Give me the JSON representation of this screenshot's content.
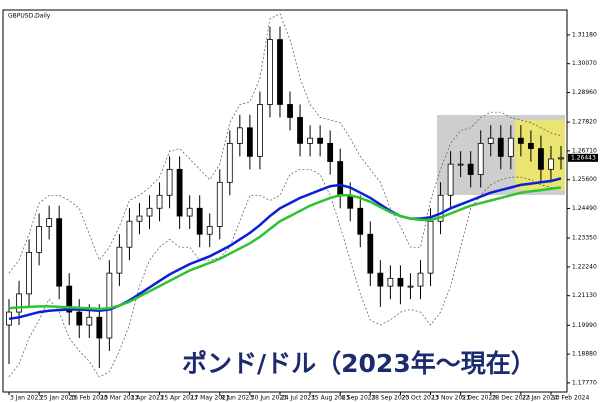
{
  "chart_data": {
    "type": "candlestick",
    "title": "GBPUSD,Daily",
    "annotation": "ポンド/ドル（2023年～現在）",
    "categories": [
      "3 Jan 2023",
      null,
      null,
      "25 Jan 2023",
      null,
      null,
      "16 Feb 2023",
      null,
      null,
      "10 Mar 2023",
      null,
      null,
      "3 Apr 2023",
      null,
      null,
      "25 Apr 2023",
      null,
      null,
      "17 May 2023",
      null,
      null,
      "8 Jun 2023",
      null,
      null,
      "30 Jun 2023",
      null,
      null,
      "24 Jul 2023",
      null,
      null,
      "15 Aug 2023",
      null,
      null,
      "6 Sep 2023",
      null,
      null,
      "28 Sep 2023",
      null,
      null,
      "20 Oct 2023",
      null,
      null,
      "13 Nov 2023",
      null,
      null,
      "5 Dec 2023",
      null,
      null,
      "28 Dec 2023",
      null,
      null,
      "22 Jan 2024",
      null,
      null,
      "13 Feb 2024",
      null
    ],
    "open": [
      1.2,
      1.205,
      1.212,
      1.228,
      1.238,
      1.241,
      1.215,
      1.205,
      1.2,
      1.203,
      1.195,
      1.22,
      1.23,
      1.24,
      1.242,
      1.245,
      1.25,
      1.26,
      1.242,
      1.245,
      1.235,
      1.238,
      1.255,
      1.27,
      1.276,
      1.265,
      1.285,
      1.31,
      1.285,
      1.28,
      1.27,
      1.272,
      1.27,
      1.263,
      1.25,
      1.245,
      1.235,
      1.22,
      1.215,
      1.218,
      1.215,
      1.215,
      1.22,
      1.24,
      1.25,
      1.262,
      1.262,
      1.258,
      1.27,
      1.272,
      1.265,
      1.272,
      1.27,
      1.268,
      1.26,
      1.264
    ],
    "high": [
      1.21,
      1.217,
      1.233,
      1.243,
      1.246,
      1.246,
      1.22,
      1.21,
      1.208,
      1.208,
      1.225,
      1.235,
      1.245,
      1.247,
      1.25,
      1.255,
      1.265,
      1.265,
      1.25,
      1.25,
      1.243,
      1.26,
      1.275,
      1.281,
      1.281,
      1.29,
      1.315,
      1.315,
      1.29,
      1.285,
      1.277,
      1.277,
      1.275,
      1.268,
      1.255,
      1.25,
      1.24,
      1.225,
      1.223,
      1.223,
      1.22,
      1.225,
      1.245,
      1.255,
      1.267,
      1.267,
      1.267,
      1.275,
      1.277,
      1.277,
      1.277,
      1.277,
      1.275,
      1.273,
      1.269,
      1.269
    ],
    "low": [
      1.185,
      1.2,
      1.207,
      1.223,
      1.233,
      1.21,
      1.2,
      1.195,
      1.195,
      1.1835,
      1.19,
      1.215,
      1.225,
      1.235,
      1.237,
      1.24,
      1.245,
      1.237,
      1.237,
      1.23,
      1.23,
      1.233,
      1.25,
      1.265,
      1.26,
      1.26,
      1.28,
      1.28,
      1.275,
      1.265,
      1.265,
      1.265,
      1.258,
      1.245,
      1.24,
      1.23,
      1.215,
      1.207,
      1.21,
      1.208,
      1.21,
      1.21,
      1.215,
      1.235,
      1.245,
      1.257,
      1.253,
      1.253,
      1.265,
      1.26,
      1.26,
      1.265,
      1.263,
      1.255,
      1.255,
      1.26
    ],
    "close": [
      1.205,
      1.212,
      1.228,
      1.238,
      1.241,
      1.215,
      1.205,
      1.2,
      1.203,
      1.195,
      1.22,
      1.23,
      1.24,
      1.242,
      1.245,
      1.25,
      1.26,
      1.242,
      1.245,
      1.235,
      1.238,
      1.255,
      1.27,
      1.276,
      1.265,
      1.285,
      1.31,
      1.285,
      1.28,
      1.27,
      1.272,
      1.27,
      1.263,
      1.25,
      1.245,
      1.235,
      1.22,
      1.215,
      1.218,
      1.215,
      1.215,
      1.22,
      1.24,
      1.25,
      1.262,
      1.262,
      1.258,
      1.27,
      1.272,
      1.265,
      1.272,
      1.27,
      1.268,
      1.26,
      1.264,
      1.26443
    ],
    "moving_averages": [
      {
        "color": "#0a1fd6",
        "values": [
          1.2024,
          1.203,
          1.204,
          1.205,
          1.2055,
          1.2058,
          1.206,
          1.206,
          1.2058,
          1.2055,
          1.206,
          1.2075,
          1.2095,
          1.212,
          1.2145,
          1.217,
          1.2195,
          1.2215,
          1.2235,
          1.225,
          1.2265,
          1.2285,
          1.2305,
          1.233,
          1.2355,
          1.2385,
          1.242,
          1.245,
          1.247,
          1.249,
          1.2505,
          1.252,
          1.2535,
          1.254,
          1.253,
          1.251,
          1.249,
          1.2465,
          1.244,
          1.242,
          1.241,
          1.241,
          1.2415,
          1.243,
          1.245,
          1.2465,
          1.248,
          1.2495,
          1.251,
          1.252,
          1.253,
          1.254,
          1.2545,
          1.255,
          1.2555,
          1.2565
        ]
      },
      {
        "color": "#2ec42e",
        "values": [
          1.2065,
          1.2068,
          1.207,
          1.2072,
          1.2072,
          1.207,
          1.2068,
          1.2066,
          1.2064,
          1.2062,
          1.2065,
          1.2075,
          1.209,
          1.211,
          1.213,
          1.215,
          1.217,
          1.219,
          1.221,
          1.2225,
          1.224,
          1.2255,
          1.2275,
          1.2295,
          1.2315,
          1.234,
          1.237,
          1.24,
          1.242,
          1.244,
          1.246,
          1.2475,
          1.249,
          1.25,
          1.25,
          1.249,
          1.2475,
          1.2455,
          1.2435,
          1.242,
          1.241,
          1.2405,
          1.2405,
          1.2415,
          1.243,
          1.2445,
          1.246,
          1.247,
          1.248,
          1.249,
          1.25,
          1.251,
          1.2515,
          1.252,
          1.2525,
          1.253
        ]
      }
    ],
    "bands": [
      {
        "color": "#555555",
        "values": [
          1.22,
          1.225,
          1.235,
          1.247,
          1.25,
          1.25,
          1.248,
          1.245,
          1.235,
          1.225,
          1.23,
          1.238,
          1.248,
          1.25,
          1.253,
          1.257,
          1.267,
          1.268,
          1.264,
          1.26,
          1.256,
          1.262,
          1.278,
          1.285,
          1.286,
          1.295,
          1.318,
          1.32,
          1.31,
          1.295,
          1.285,
          1.28,
          1.279,
          1.278,
          1.272,
          1.265,
          1.26,
          1.255,
          1.245,
          1.238,
          1.23,
          1.23,
          1.248,
          1.26,
          1.27,
          1.275,
          1.276,
          1.28,
          1.282,
          1.282,
          1.28,
          1.279,
          1.278,
          1.276,
          1.274,
          1.273
        ]
      },
      {
        "color": "#555555",
        "values": [
          1.18,
          1.185,
          1.195,
          1.202,
          1.21,
          1.205,
          1.195,
          1.19,
          1.186,
          1.18,
          1.182,
          1.19,
          1.2,
          1.215,
          1.225,
          1.23,
          1.233,
          1.23,
          1.23,
          1.225,
          1.225,
          1.226,
          1.23,
          1.24,
          1.25,
          1.25,
          1.248,
          1.25,
          1.258,
          1.26,
          1.26,
          1.258,
          1.25,
          1.238,
          1.225,
          1.212,
          1.202,
          1.2,
          1.202,
          1.205,
          1.206,
          1.205,
          1.2,
          1.205,
          1.215,
          1.23,
          1.245,
          1.25,
          1.254,
          1.256,
          1.257,
          1.257,
          1.256,
          1.254,
          1.253,
          1.253
        ]
      }
    ],
    "ylim": [
      1.1742,
      1.3214
    ],
    "yticks": [
      {
        "value": 1.3118,
        "label": "1.31180"
      },
      {
        "value": 1.3007,
        "label": "1.30070"
      },
      {
        "value": 1.2896,
        "label": "1.28960"
      },
      {
        "value": 1.2782,
        "label": "1.27820"
      },
      {
        "value": 1.2671,
        "label": "1.26710"
      },
      {
        "value": 1.256,
        "label": "1.25600"
      },
      {
        "value": 1.2449,
        "label": "1.24490"
      },
      {
        "value": 1.2335,
        "label": "1.23350"
      },
      {
        "value": 1.2224,
        "label": "1.22240"
      },
      {
        "value": 1.2113,
        "label": "1.21130"
      },
      {
        "value": 1.1999,
        "label": "1.19990"
      },
      {
        "value": 1.1888,
        "label": "1.18880"
      },
      {
        "value": 1.1777,
        "label": "1.17770"
      }
    ]
  }
}
